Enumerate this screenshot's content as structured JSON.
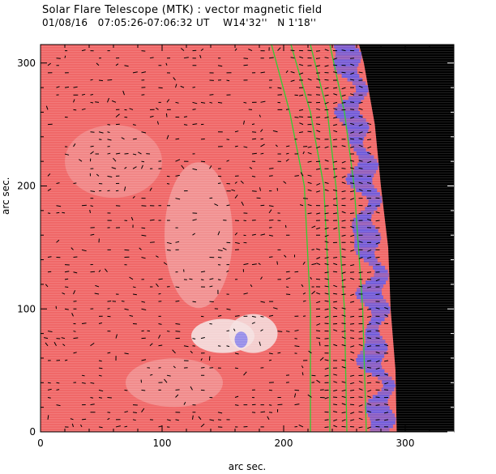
{
  "header": {
    "title": "Solar Flare Telescope (MTK) : vector magnetic field",
    "subtitle_date": "01/08/16",
    "subtitle_time": "07:05:26-07:06:32 UT",
    "subtitle_position": "W14'32''   N 1'18''"
  },
  "chart_data": {
    "type": "heatmap",
    "xlabel": "arc sec.",
    "ylabel": "arc sec.",
    "xlim": [
      0,
      340
    ],
    "ylim": [
      0,
      315
    ],
    "x_ticks": [
      0,
      100,
      200,
      300
    ],
    "y_ticks": [
      0,
      100,
      200,
      300
    ],
    "x_tick_labels": [
      "0",
      "100",
      "200",
      "300"
    ],
    "y_tick_labels": [
      "0",
      "100",
      "200",
      "300"
    ],
    "limb_edge_x": [
      [
        0,
        293
      ],
      [
        50,
        292
      ],
      [
        100,
        288
      ],
      [
        150,
        286
      ],
      [
        200,
        280
      ],
      [
        250,
        275
      ],
      [
        300,
        266
      ],
      [
        315,
        262
      ]
    ],
    "contours": [
      {
        "points": [
          [
            0,
            222
          ],
          [
            100,
            222
          ],
          [
            200,
            217
          ],
          [
            260,
            205
          ],
          [
            315,
            190
          ]
        ]
      },
      {
        "points": [
          [
            0,
            238
          ],
          [
            100,
            238
          ],
          [
            200,
            233
          ],
          [
            260,
            222
          ],
          [
            315,
            206
          ]
        ]
      },
      {
        "points": [
          [
            0,
            252
          ],
          [
            100,
            250
          ],
          [
            200,
            243
          ],
          [
            260,
            236
          ],
          [
            315,
            222
          ]
        ]
      },
      {
        "points": [
          [
            0,
            268
          ],
          [
            100,
            265
          ],
          [
            200,
            258
          ],
          [
            260,
            250
          ],
          [
            315,
            238
          ]
        ]
      }
    ],
    "colors": {
      "positive_field": "#f06868",
      "negative_field": "#5a5af0",
      "weak_field": "#f4e0e0",
      "background": "#000000",
      "contour": "#33cc33",
      "vector": "#000000"
    }
  }
}
